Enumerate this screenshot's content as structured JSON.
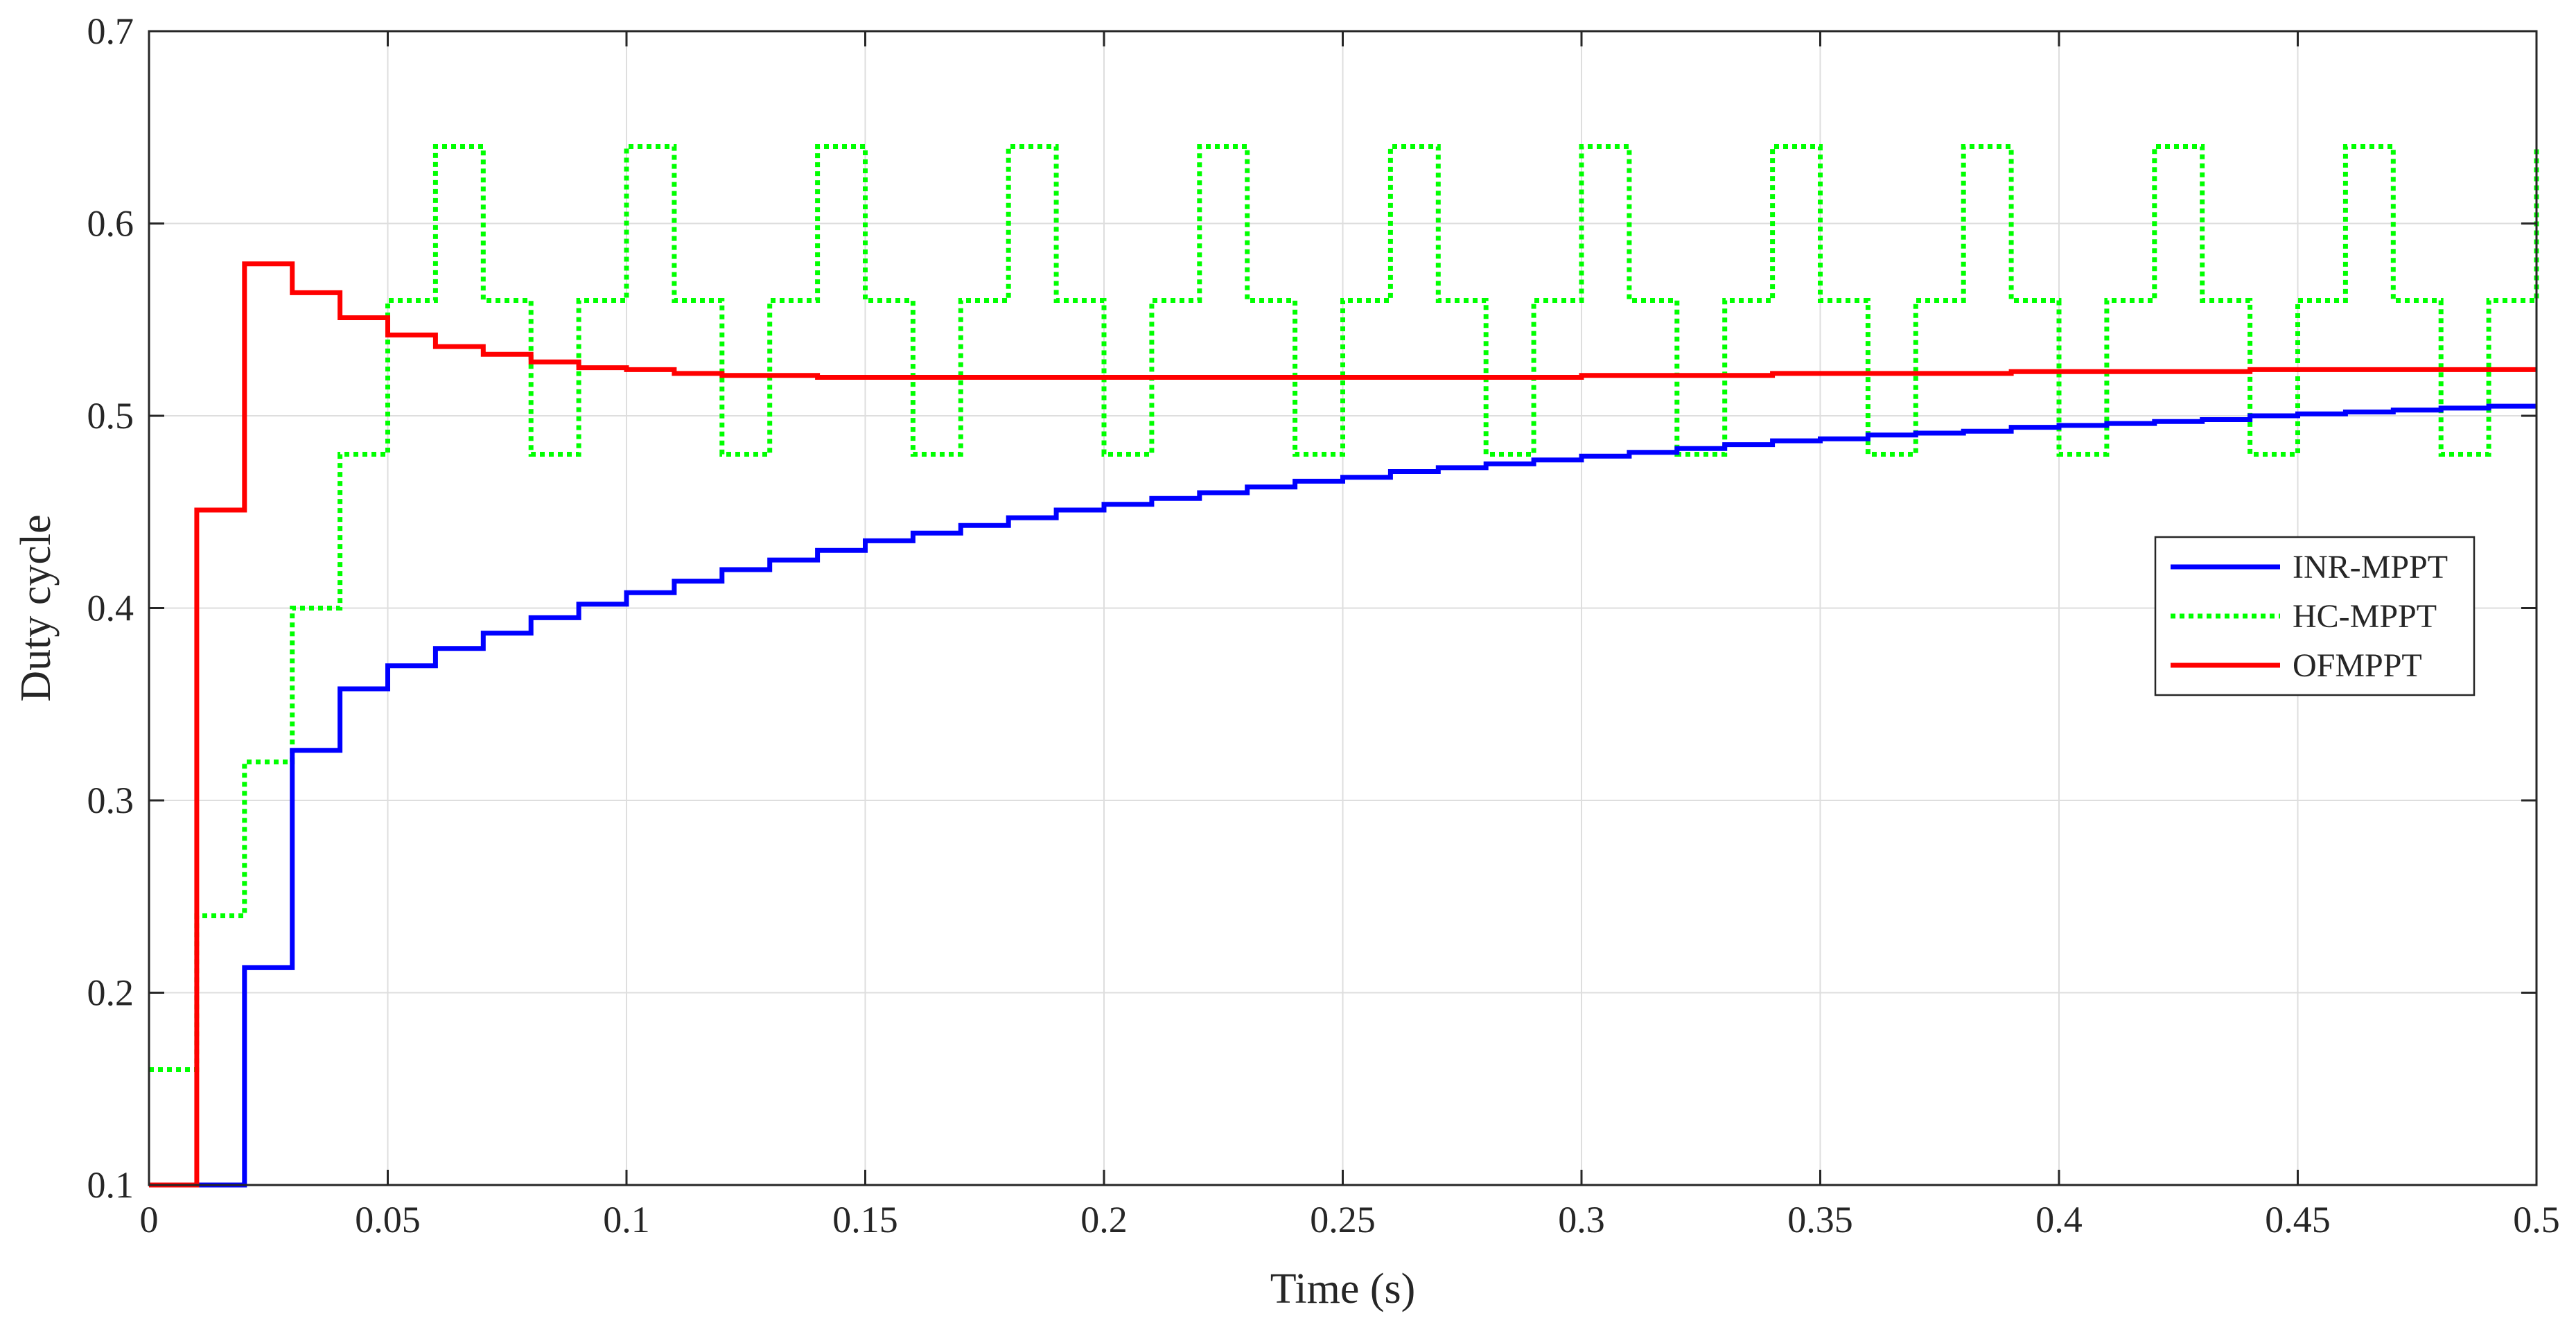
{
  "chart_data": {
    "type": "line",
    "title": "",
    "xlabel": "Time (s)",
    "ylabel": "Duty cycle",
    "xlim": [
      0,
      0.5
    ],
    "ylim": [
      0.1,
      0.7
    ],
    "x_ticks": [
      0,
      0.05,
      0.1,
      0.15,
      0.2,
      0.25,
      0.3,
      0.35,
      0.4,
      0.45,
      0.5
    ],
    "x_tick_labels": [
      "0",
      "0.05",
      "0.1",
      "0.15",
      "0.2",
      "0.25",
      "0.3",
      "0.35",
      "0.4",
      "0.45",
      "0.5"
    ],
    "y_ticks": [
      0.1,
      0.2,
      0.3,
      0.4,
      0.5,
      0.6,
      0.7
    ],
    "y_tick_labels": [
      "0.1",
      "0.2",
      "0.3",
      "0.4",
      "0.5",
      "0.6",
      "0.7"
    ],
    "grid": true,
    "legend_position": "right",
    "step_interval": 0.01,
    "series": [
      {
        "name": "INR-MPPT",
        "color": "#0000ff",
        "line_style": "solid",
        "values": [
          0.1,
          0.1,
          0.213,
          0.326,
          0.358,
          0.37,
          0.379,
          0.387,
          0.395,
          0.402,
          0.408,
          0.414,
          0.42,
          0.425,
          0.43,
          0.435,
          0.439,
          0.443,
          0.447,
          0.451,
          0.454,
          0.457,
          0.46,
          0.463,
          0.466,
          0.468,
          0.471,
          0.473,
          0.475,
          0.477,
          0.479,
          0.481,
          0.483,
          0.485,
          0.487,
          0.488,
          0.49,
          0.491,
          0.492,
          0.494,
          0.495,
          0.496,
          0.497,
          0.498,
          0.5,
          0.501,
          0.502,
          0.503,
          0.504,
          0.505
        ]
      },
      {
        "name": "HC-MPPT",
        "color": "#00ff00",
        "line_style": "dotted",
        "values": [
          0.16,
          0.24,
          0.32,
          0.4,
          0.48,
          0.56,
          0.64,
          0.56,
          0.48,
          0.56,
          0.64,
          0.56,
          0.48,
          0.56,
          0.64,
          0.56,
          0.48,
          0.56,
          0.64,
          0.56,
          0.48,
          0.56,
          0.64,
          0.56,
          0.48,
          0.56,
          0.64,
          0.56,
          0.48,
          0.56,
          0.64,
          0.56,
          0.48,
          0.56,
          0.64,
          0.56,
          0.48,
          0.56,
          0.64,
          0.56,
          0.48,
          0.56,
          0.64,
          0.56,
          0.48,
          0.56,
          0.64,
          0.56,
          0.48,
          0.56,
          0.64
        ]
      },
      {
        "name": "OFMPPT",
        "color": "#ff0000",
        "line_style": "solid",
        "values": [
          0.1,
          0.451,
          0.579,
          0.564,
          0.551,
          0.542,
          0.536,
          0.532,
          0.528,
          0.525,
          0.524,
          0.522,
          0.521,
          0.521,
          0.52,
          0.52,
          0.52,
          0.52,
          0.52,
          0.52,
          0.52,
          0.52,
          0.52,
          0.52,
          0.52,
          0.52,
          0.52,
          0.52,
          0.52,
          0.52,
          0.521,
          0.521,
          0.521,
          0.521,
          0.522,
          0.522,
          0.522,
          0.522,
          0.522,
          0.523,
          0.523,
          0.523,
          0.523,
          0.523,
          0.524,
          0.524,
          0.524,
          0.524,
          0.524,
          0.524
        ]
      }
    ]
  }
}
